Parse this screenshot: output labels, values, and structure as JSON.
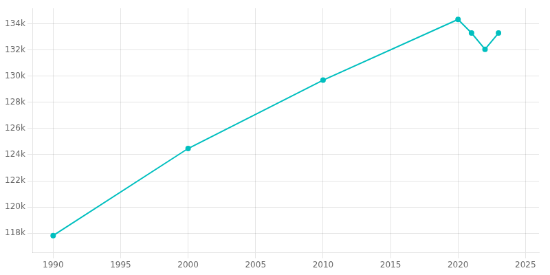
{
  "chart_data": {
    "type": "line",
    "x": [
      1990,
      2000,
      2010,
      2020,
      2021,
      2022,
      2023
    ],
    "values": [
      117810,
      124471,
      129699,
      134346,
      133306,
      132064,
      133306
    ],
    "color": "#00BFBF",
    "marker": "circle",
    "xlim": [
      1988.5,
      2026
    ],
    "xticks": [
      1990,
      1995,
      2000,
      2005,
      2010,
      2015,
      2020,
      2025
    ],
    "ylim": [
      116500,
      135200
    ],
    "yticks": [
      {
        "value": 118000,
        "label": "118k"
      },
      {
        "value": 120000,
        "label": "120k"
      },
      {
        "value": 122000,
        "label": "122k"
      },
      {
        "value": 124000,
        "label": "124k"
      },
      {
        "value": 126000,
        "label": "126k"
      },
      {
        "value": 128000,
        "label": "128k"
      },
      {
        "value": 130000,
        "label": "130k"
      },
      {
        "value": 132000,
        "label": "132k"
      },
      {
        "value": 134000,
        "label": "134k"
      }
    ],
    "grid": true
  }
}
